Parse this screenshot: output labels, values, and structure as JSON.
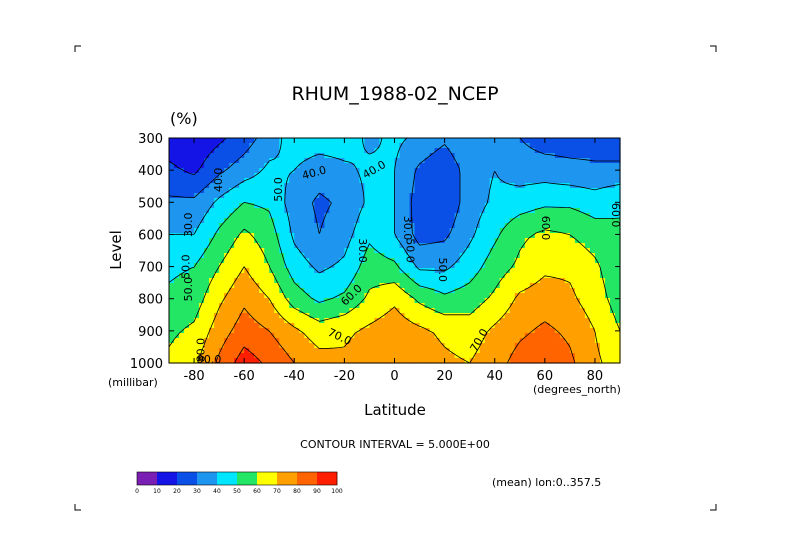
{
  "title": "RHUM_1988-02_NCEP",
  "units": "(%)",
  "contour_note": "CONTOUR INTERVAL = 5.000E+00",
  "mean_note": "(mean) lon:0..357.5",
  "chart_data": {
    "type": "heatmap",
    "title": "RHUM_1988-02_NCEP",
    "xlabel": "Latitude",
    "x_unit": "(degrees_north)",
    "ylabel": "Level",
    "y_unit": "(millibar)",
    "xlim": [
      -90,
      90
    ],
    "ylim": [
      1000,
      300
    ],
    "x_ticks": [
      -80,
      -60,
      -40,
      -20,
      0,
      20,
      40,
      60,
      80
    ],
    "y_ticks": [
      300,
      400,
      500,
      600,
      700,
      800,
      900,
      1000
    ],
    "contour_interval": 5,
    "latitudes": [
      -90,
      -80,
      -70,
      -60,
      -50,
      -40,
      -30,
      -20,
      -10,
      0,
      10,
      20,
      30,
      40,
      50,
      60,
      70,
      80,
      90
    ],
    "levels": [
      300,
      400,
      500,
      600,
      700,
      800,
      900,
      1000
    ],
    "values": [
      [
        15,
        12,
        18,
        25,
        35,
        45,
        45,
        45,
        38,
        42,
        38,
        32,
        40,
        35,
        30,
        25,
        25,
        25,
        25
      ],
      [
        22,
        18,
        28,
        35,
        42,
        40,
        35,
        38,
        42,
        40,
        28,
        22,
        35,
        40,
        35,
        35,
        33,
        32,
        32
      ],
      [
        32,
        32,
        42,
        50,
        48,
        35,
        28,
        32,
        42,
        40,
        25,
        22,
        35,
        42,
        45,
        48,
        48,
        45,
        50
      ],
      [
        40,
        40,
        52,
        62,
        55,
        38,
        30,
        36,
        48,
        40,
        26,
        28,
        38,
        48,
        58,
        62,
        60,
        55,
        50
      ],
      [
        48,
        50,
        60,
        70,
        60,
        45,
        38,
        42,
        55,
        52,
        38,
        38,
        45,
        55,
        62,
        68,
        68,
        62,
        52
      ],
      [
        52,
        55,
        68,
        78,
        70,
        55,
        48,
        52,
        62,
        68,
        58,
        52,
        55,
        62,
        72,
        75,
        72,
        65,
        55
      ],
      [
        58,
        62,
        75,
        85,
        80,
        72,
        65,
        68,
        72,
        76,
        72,
        68,
        65,
        72,
        78,
        82,
        78,
        70,
        60
      ],
      [
        62,
        68,
        82,
        95,
        88,
        80,
        74,
        72,
        76,
        78,
        75,
        72,
        70,
        76,
        84,
        88,
        82,
        72,
        65
      ]
    ],
    "contour_labels": [
      "30.0",
      "40.0",
      "40.0",
      "50.0",
      "50.0",
      "30.0",
      "50.0",
      "50.0",
      "60.0",
      "60.0",
      "60.0",
      "70.0",
      "70.0",
      "80.0",
      "30.0",
      "50.0",
      "90.0",
      "40.0"
    ],
    "colorbar": {
      "ticks": [
        "0",
        "10",
        "20",
        "30",
        "40",
        "50",
        "60",
        "70",
        "80",
        "90",
        "100"
      ],
      "colors": [
        "#7a1fb4",
        "#1414e6",
        "#0a50e6",
        "#1e96f0",
        "#00e6ff",
        "#23e664",
        "#ffff00",
        "#ffa000",
        "#ff6400",
        "#ff1e00"
      ]
    },
    "grid": false,
    "legend": "colorbar-bottom-left"
  }
}
